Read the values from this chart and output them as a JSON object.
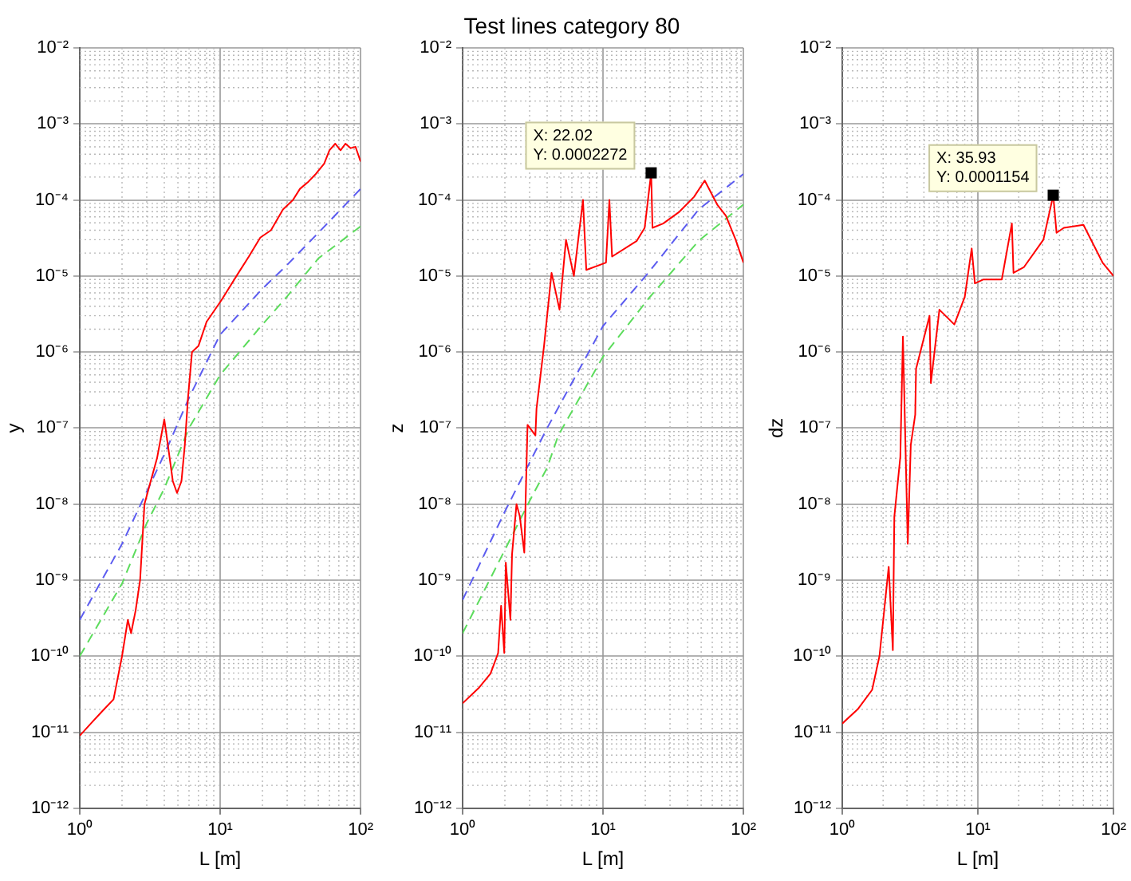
{
  "chart_data": [
    {
      "type": "line",
      "xlabel": "L [m]",
      "ylabel": "y",
      "log": "xy",
      "grid": true,
      "legend": false,
      "marker": "none",
      "xlim": [
        1,
        100
      ],
      "ylim": [
        1e-12,
        0.01
      ],
      "xticks": [
        {
          "value": 1,
          "label": "10⁰"
        },
        {
          "value": 10,
          "label": "10¹"
        },
        {
          "value": 100,
          "label": "10²"
        }
      ],
      "yticks": [
        {
          "value": 1e-12,
          "label": "10⁻¹²"
        },
        {
          "value": 1e-11,
          "label": "10⁻¹¹"
        },
        {
          "value": 1e-10,
          "label": "10⁻¹⁰"
        },
        {
          "value": 1e-09,
          "label": "10⁻⁹"
        },
        {
          "value": 1e-08,
          "label": "10⁻⁸"
        },
        {
          "value": 1e-07,
          "label": "10⁻⁷"
        },
        {
          "value": 1e-06,
          "label": "10⁻⁶"
        },
        {
          "value": 1e-05,
          "label": "10⁻⁵"
        },
        {
          "value": 0.0001,
          "label": "10⁻⁴"
        },
        {
          "value": 0.001,
          "label": "10⁻³"
        },
        {
          "value": 0.01,
          "label": "10⁻²"
        }
      ],
      "series": [
        {
          "color": "#ff0000",
          "line_style": "solid",
          "x": [
            1,
            1.2,
            1.45,
            1.74,
            2.0,
            2.2,
            2.32,
            2.5,
            2.69,
            2.89,
            3.2,
            3.55,
            4.0,
            4.3,
            4.6,
            4.93,
            5.3,
            5.6,
            5.9,
            6.3,
            7.0,
            8.0,
            10.2,
            13.5,
            16,
            19.3,
            23,
            28,
            33,
            37,
            42,
            48,
            55,
            60,
            66,
            72,
            78,
            85,
            92,
            100
          ],
          "values": [
            9e-12,
            1.3e-11,
            1.9e-11,
            2.7e-11,
            1e-10,
            3e-10,
            2e-10,
            4e-10,
            1e-09,
            1e-08,
            2e-08,
            4e-08,
            1.3e-07,
            5e-08,
            2e-08,
            1.4e-08,
            2e-08,
            6e-08,
            2.5e-07,
            1e-06,
            1.2e-06,
            2.5e-06,
            4.8e-06,
            1.1e-05,
            1.8e-05,
            3.2e-05,
            4e-05,
            7.5e-05,
            0.0001,
            0.00014,
            0.00017,
            0.00022,
            0.0003,
            0.00045,
            0.00055,
            0.00045,
            0.00055,
            0.00048,
            0.0005,
            0.00032
          ]
        },
        {
          "color": "#5c5cf0",
          "line_style": "dashed",
          "x": [
            1,
            2,
            4,
            6,
            10,
            20,
            30,
            50,
            100
          ],
          "values": [
            3e-10,
            3e-09,
            4.5e-08,
            2.5e-07,
            1.7e-06,
            6.8e-06,
            1.4e-05,
            3.7e-05,
            0.00014
          ]
        },
        {
          "color": "#5cdc5c",
          "line_style": "dashed",
          "x": [
            1,
            2,
            3,
            4,
            6,
            10,
            20,
            30,
            50,
            100
          ],
          "values": [
            1e-10,
            9e-10,
            5.6e-09,
            1.6e-08,
            1e-07,
            5e-07,
            2.3e-06,
            5.4e-06,
            1.7e-05,
            4.5e-05
          ]
        }
      ]
    },
    {
      "type": "line",
      "title": "Test lines category 80",
      "xlabel": "L [m]",
      "ylabel": "z",
      "log": "xy",
      "grid": true,
      "legend": false,
      "marker": "none",
      "xlim": [
        1,
        100
      ],
      "ylim": [
        1e-12,
        0.01
      ],
      "xticks": [
        {
          "value": 1,
          "label": "10⁰"
        },
        {
          "value": 10,
          "label": "10¹"
        },
        {
          "value": 100,
          "label": "10²"
        }
      ],
      "yticks": [
        {
          "value": 1e-12,
          "label": "10⁻¹²"
        },
        {
          "value": 1e-11,
          "label": "10⁻¹¹"
        },
        {
          "value": 1e-10,
          "label": "10⁻¹⁰"
        },
        {
          "value": 1e-09,
          "label": "10⁻⁹"
        },
        {
          "value": 1e-08,
          "label": "10⁻⁸"
        },
        {
          "value": 1e-07,
          "label": "10⁻⁷"
        },
        {
          "value": 1e-06,
          "label": "10⁻⁶"
        },
        {
          "value": 1e-05,
          "label": "10⁻⁵"
        },
        {
          "value": 0.0001,
          "label": "10⁻⁴"
        },
        {
          "value": 0.001,
          "label": "10⁻³"
        },
        {
          "value": 0.01,
          "label": "10⁻²"
        }
      ],
      "annotations": [
        {
          "text": "X: 22.02\nY: 0.0002272",
          "x": 22.02,
          "y": 0.0002272
        }
      ],
      "series": [
        {
          "color": "#ff0000",
          "line_style": "solid",
          "x": [
            1,
            1.3,
            1.58,
            1.79,
            1.88,
            1.98,
            2.03,
            2.19,
            2.25,
            2.42,
            2.55,
            2.75,
            2.9,
            3.3,
            3.36,
            3.8,
            4.3,
            4.9,
            5.45,
            6.2,
            7.2,
            7.6,
            10.5,
            11.1,
            11.6,
            17.4,
            19.8,
            22.02,
            22.5,
            26.8,
            35,
            44.5,
            53,
            65,
            75,
            88,
            100
          ],
          "values": [
            2.4e-11,
            3.8e-11,
            5.9e-11,
            1.1e-10,
            4.6e-10,
            1.1e-10,
            1.7e-09,
            3e-10,
            2.2e-09,
            1e-08,
            7e-09,
            2.3e-09,
            1.1e-07,
            8e-08,
            1.8e-07,
            1.2e-06,
            1.1e-05,
            3.6e-06,
            3e-05,
            1e-05,
            0.0001,
            1.2e-05,
            1.5e-05,
            0.0001,
            1.8e-05,
            2.9e-05,
            4.3e-05,
            0.0002272,
            4.3e-05,
            4.9e-05,
            7e-05,
            0.00011,
            0.00018,
            8.7e-05,
            6.2e-05,
            3e-05,
            1.5e-05
          ]
        },
        {
          "color": "#5c5cf0",
          "line_style": "dashed",
          "x": [
            1,
            2,
            4,
            10,
            21,
            48,
            100
          ],
          "values": [
            5.5e-10,
            8e-09,
            1e-07,
            2.2e-06,
            1.1e-05,
            7.5e-05,
            0.00022
          ]
        },
        {
          "color": "#5cdc5c",
          "line_style": "dashed",
          "x": [
            1,
            2,
            3,
            4,
            4.8,
            10,
            21,
            48,
            100
          ],
          "values": [
            2e-10,
            2.5e-09,
            1.1e-08,
            3e-08,
            8e-08,
            8.7e-07,
            5e-06,
            2.9e-05,
            8.7e-05
          ]
        }
      ]
    },
    {
      "type": "line",
      "xlabel": "L [m]",
      "ylabel": "dz",
      "log": "xy",
      "grid": true,
      "legend": false,
      "marker": "none",
      "xlim": [
        1,
        100
      ],
      "ylim": [
        1e-12,
        0.01
      ],
      "xticks": [
        {
          "value": 1,
          "label": "10⁰"
        },
        {
          "value": 10,
          "label": "10¹"
        },
        {
          "value": 100,
          "label": "10²"
        }
      ],
      "yticks": [
        {
          "value": 1e-12,
          "label": "10⁻¹²"
        },
        {
          "value": 1e-11,
          "label": "10⁻¹¹"
        },
        {
          "value": 1e-10,
          "label": "10⁻¹⁰"
        },
        {
          "value": 1e-09,
          "label": "10⁻⁹"
        },
        {
          "value": 1e-08,
          "label": "10⁻⁸"
        },
        {
          "value": 1e-07,
          "label": "10⁻⁷"
        },
        {
          "value": 1e-06,
          "label": "10⁻⁶"
        },
        {
          "value": 1e-05,
          "label": "10⁻⁵"
        },
        {
          "value": 0.0001,
          "label": "10⁻⁴"
        },
        {
          "value": 0.001,
          "label": "10⁻³"
        },
        {
          "value": 0.01,
          "label": "10⁻²"
        }
      ],
      "annotations": [
        {
          "text": "X: 35.93\nY: 0.0001154",
          "x": 35.93,
          "y": 0.0001154
        }
      ],
      "series": [
        {
          "color": "#ff0000",
          "line_style": "solid",
          "x": [
            1,
            1.3,
            1.66,
            1.88,
            2.2,
            2.36,
            2.42,
            2.68,
            2.8,
            3.04,
            3.2,
            3.45,
            3.5,
            4.4,
            4.5,
            5.2,
            6.7,
            8,
            9,
            9.5,
            11,
            15,
            17.8,
            18.3,
            21.8,
            30.4,
            35.93,
            38,
            43,
            60,
            83,
            100
          ],
          "values": [
            1.3e-11,
            2e-11,
            3.6e-11,
            1e-10,
            1.5e-09,
            1.2e-10,
            6.8e-09,
            4.2e-08,
            1.6e-06,
            3e-09,
            6e-08,
            1.5e-07,
            6e-07,
            3e-06,
            3.9e-07,
            3.6e-06,
            2.3e-06,
            5.3e-06,
            2.3e-05,
            8e-06,
            9e-06,
            9e-06,
            4.9e-05,
            1.1e-05,
            1.3e-05,
            3e-05,
            0.0001154,
            3.7e-05,
            4.3e-05,
            4.7e-05,
            1.5e-05,
            1e-05
          ]
        }
      ]
    }
  ]
}
